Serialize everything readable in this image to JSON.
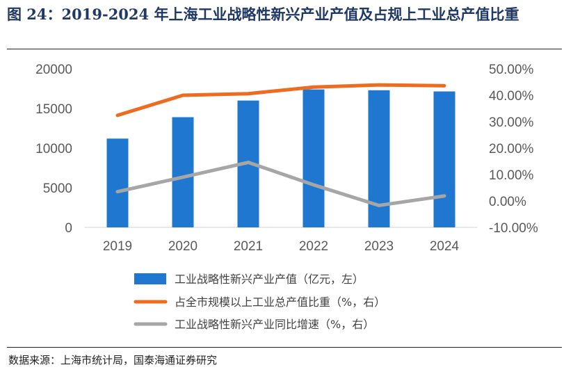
{
  "figure": {
    "title": "图 24：2019-2024 年上海工业战略性新兴产业产值及占规上工业总产值比重",
    "source": "数据来源：上海市统计局，国泰海通证券研究"
  },
  "chart_data": {
    "type": "bar+line",
    "categories": [
      "2019",
      "2020",
      "2021",
      "2022",
      "2023",
      "2024"
    ],
    "left_axis": {
      "ylim": [
        0,
        20000
      ],
      "ticks": [
        "0",
        "5000",
        "10000",
        "15000",
        "20000"
      ]
    },
    "right_axis": {
      "ylim": [
        -10,
        50
      ],
      "ticks": [
        "-10.00%",
        "0.00%",
        "10.00%",
        "20.00%",
        "30.00%",
        "40.00%",
        "50.00%"
      ]
    },
    "series": [
      {
        "name": "工业战略性新兴产业产值（亿元，左）",
        "type": "bar",
        "axis": "left",
        "color": "#1f77d0",
        "values": [
          11200,
          13900,
          16000,
          17400,
          17300,
          17150
        ]
      },
      {
        "name": "占全市规模以上工业总产值比重（%，右）",
        "type": "line",
        "axis": "right",
        "color": "#ed6c1f",
        "values": [
          32.4,
          40.0,
          40.6,
          43.1,
          43.9,
          43.6
        ]
      },
      {
        "name": "工业战略性新兴产业同比增速（%，右）",
        "type": "line",
        "axis": "right",
        "color": "#a6a6a6",
        "values": [
          3.5,
          9.0,
          14.6,
          6.1,
          -1.7,
          1.9
        ]
      }
    ]
  }
}
